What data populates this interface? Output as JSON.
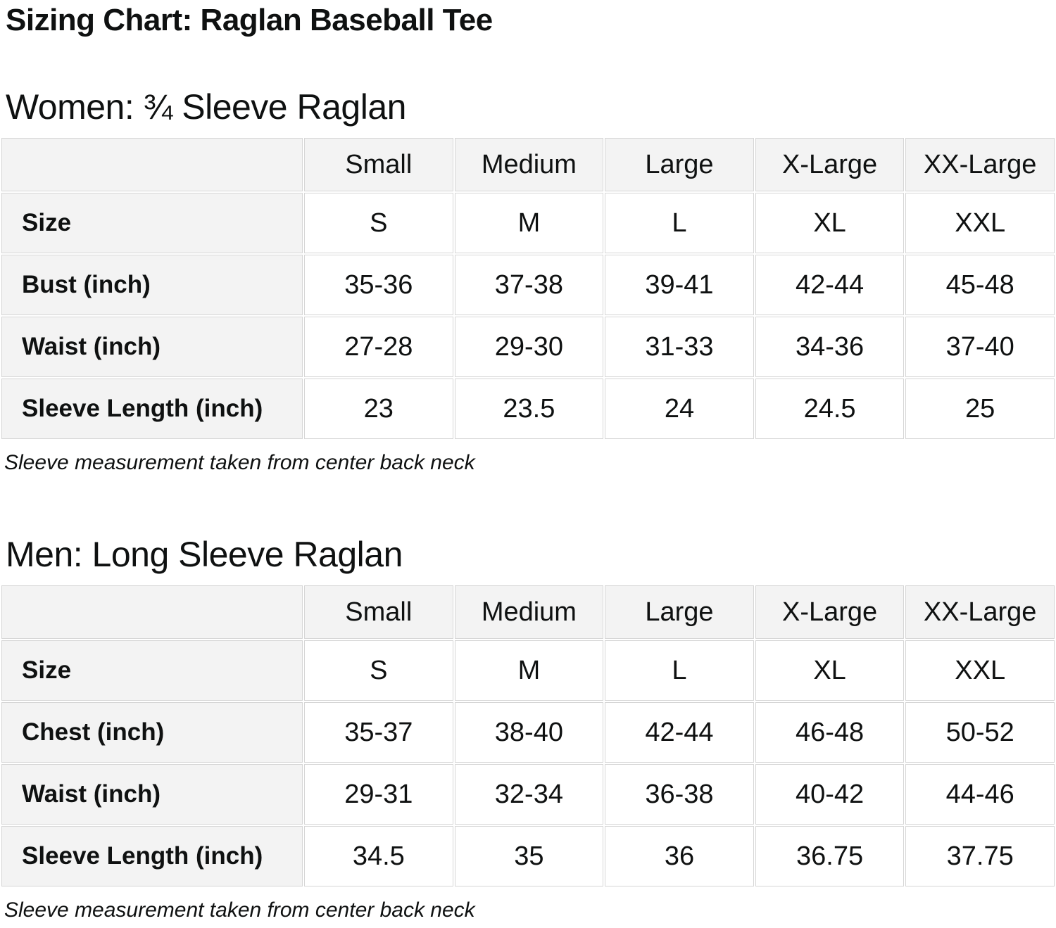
{
  "page": {
    "title": "Sizing Chart: Raglan Baseball Tee"
  },
  "colors": {
    "header_fill": "#f3f3f3",
    "cell_border": "#d6d6d6",
    "text": "#0f1111"
  },
  "sections": [
    {
      "heading": "Women: ¾ Sleeve Raglan",
      "note": "Sleeve measurement taken from center back neck",
      "table": {
        "column_headers": [
          "",
          "Small",
          "Medium",
          "Large",
          "X-Large",
          "XX-Large"
        ],
        "rows": [
          {
            "label": "Size",
            "values": [
              "S",
              "M",
              "L",
              "XL",
              "XXL"
            ]
          },
          {
            "label": "Bust (inch)",
            "values": [
              "35-36",
              "37-38",
              "39-41",
              "42-44",
              "45-48"
            ]
          },
          {
            "label": "Waist (inch)",
            "values": [
              "27-28",
              "29-30",
              "31-33",
              "34-36",
              "37-40"
            ]
          },
          {
            "label": "Sleeve Length (inch)",
            "values": [
              "23",
              "23.5",
              "24",
              "24.5",
              "25"
            ]
          }
        ]
      }
    },
    {
      "heading": "Men: Long Sleeve Raglan",
      "note": "Sleeve measurement taken from center back neck",
      "table": {
        "column_headers": [
          "",
          "Small",
          "Medium",
          "Large",
          "X-Large",
          "XX-Large"
        ],
        "rows": [
          {
            "label": "Size",
            "values": [
              "S",
              "M",
              "L",
              "XL",
              "XXL"
            ]
          },
          {
            "label": "Chest (inch)",
            "values": [
              "35-37",
              "38-40",
              "42-44",
              "46-48",
              "50-52"
            ]
          },
          {
            "label": "Waist (inch)",
            "values": [
              "29-31",
              "32-34",
              "36-38",
              "40-42",
              "44-46"
            ]
          },
          {
            "label": "Sleeve Length (inch)",
            "values": [
              "34.5",
              "35",
              "36",
              "36.75",
              "37.75"
            ]
          }
        ]
      }
    }
  ]
}
